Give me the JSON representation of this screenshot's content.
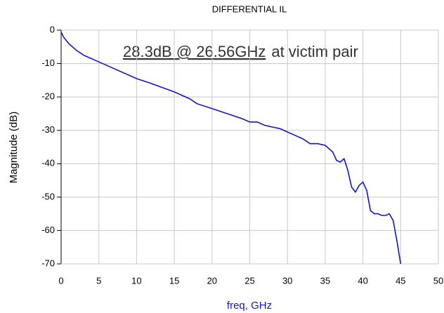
{
  "chart_data": {
    "type": "line",
    "title": "DIFFERENTIAL IL",
    "annotation": "28.3dB @ 26.56GHz",
    "annotation_suffix": "at victim pair",
    "x_label": "freq, GHz",
    "y_label": "Magnitude (dB)",
    "x": [
      0,
      0.3,
      1,
      2,
      3,
      5,
      7,
      10,
      12,
      15,
      17,
      18,
      20,
      22,
      24,
      25,
      26,
      27,
      28,
      29,
      30,
      31,
      32,
      33,
      34,
      35,
      36,
      36.5,
      37,
      37.5,
      38,
      38.5,
      39,
      39.5,
      40,
      40.5,
      41,
      41.5,
      42,
      42.5,
      43,
      43.5,
      44,
      44.5,
      45
    ],
    "series": [
      {
        "name": "DIFFERENTIAL IL",
        "color": "#1414c8",
        "values": [
          -0.5,
          -2,
          -4,
          -6,
          -7.5,
          -9.5,
          -11.5,
          -14.5,
          -16,
          -18.5,
          -20.5,
          -22,
          -23.5,
          -25,
          -26.5,
          -27.5,
          -27.5,
          -28.5,
          -29,
          -29.5,
          -30.5,
          -31.5,
          -32.5,
          -34,
          -34,
          -34.5,
          -36.5,
          -39,
          -39.5,
          -38.5,
          -42,
          -47,
          -48.5,
          -46.5,
          -45.5,
          -48,
          -54,
          -55,
          -55,
          -55.5,
          -55.5,
          -55,
          -57,
          -63,
          -70
        ]
      }
    ],
    "xlim": [
      0,
      50
    ],
    "xticks": [
      0,
      5,
      10,
      15,
      20,
      25,
      30,
      35,
      40,
      45,
      50
    ],
    "ylim": [
      -70,
      0
    ],
    "yticks": [
      -70,
      -60,
      -50,
      -40,
      -30,
      -20,
      -10,
      0
    ],
    "grid": true
  }
}
